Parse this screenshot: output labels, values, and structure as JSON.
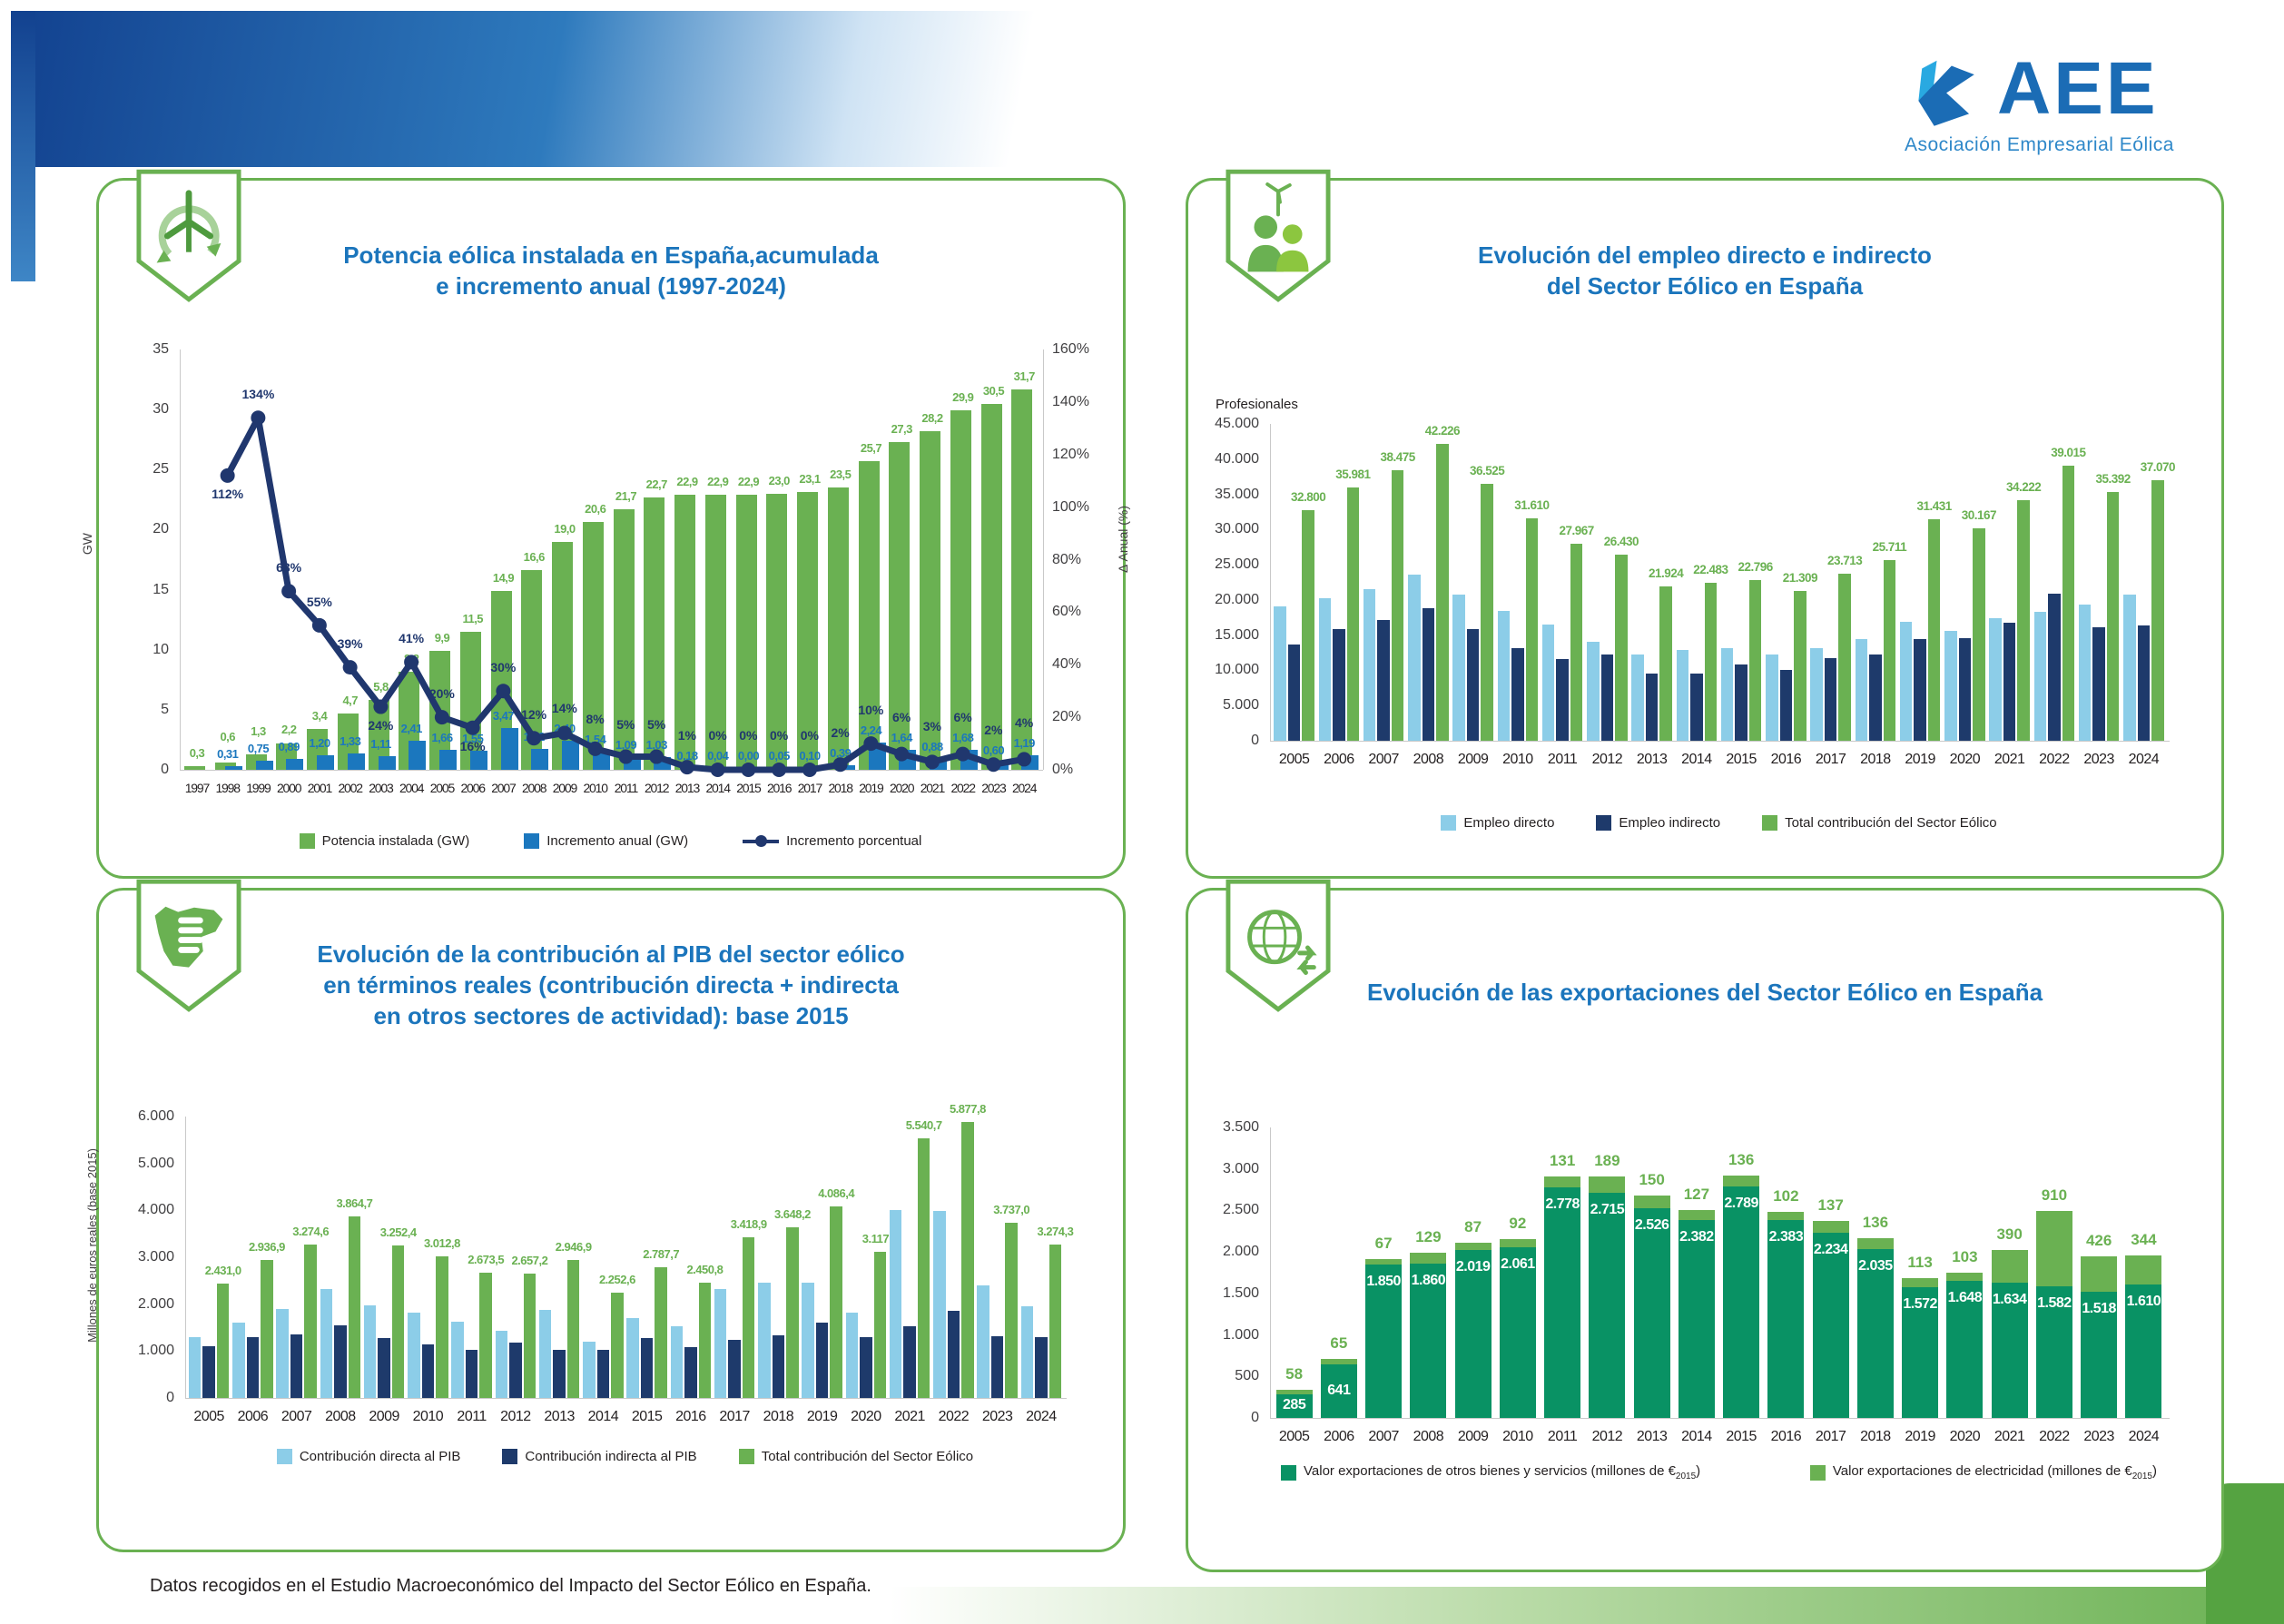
{
  "page": {
    "logo": {
      "name": "AEE",
      "subtitle": "Asociación Empresarial Eólica"
    },
    "footer": "Datos recogidos en el Estudio Macroeconómico del Impacto del Sector Eólico en España."
  },
  "colors": {
    "green": "#6AB152",
    "blue": "#1B77BE",
    "navy": "#20376E",
    "light_blue": "#8CCDE8",
    "dark_blue": "#1E3A6B",
    "teal_green": "#099264",
    "title_blue": "#1B75BC",
    "panel_border": "#6AB152"
  },
  "chart_data": [
    {
      "id": "capacity",
      "type": "bar+line",
      "title": "Potencia eólica instalada en España, acumulada e incremento anual (1997-2024)",
      "title_lines": [
        "Potencia eólica instalada en España,acumulada",
        "e incremento anual (1997-2024)"
      ],
      "categories": [
        "1997",
        "1998",
        "1999",
        "2000",
        "2001",
        "2002",
        "2003",
        "2004",
        "2005",
        "2006",
        "2007",
        "2008",
        "2009",
        "2010",
        "2011",
        "2012",
        "2013",
        "2014",
        "2015",
        "2016",
        "2017",
        "2018",
        "2019",
        "2020",
        "2021",
        "2022",
        "2023",
        "2024"
      ],
      "ylabel_left": "GW",
      "ylim_left": [
        0,
        35
      ],
      "yticks_left": [
        "0",
        "5",
        "10",
        "15",
        "20",
        "25",
        "30",
        "35"
      ],
      "ylabel_right": "Δ Anual (%)",
      "ylim_right": [
        0,
        160
      ],
      "yticks_right": [
        "0%",
        "20%",
        "40%",
        "60%",
        "80%",
        "100%",
        "120%",
        "140%",
        "160%"
      ],
      "series": [
        {
          "name": "Potencia instalada (GW)",
          "type": "bar",
          "values": [
            0.3,
            0.6,
            1.3,
            2.2,
            3.4,
            4.7,
            5.8,
            8.2,
            9.9,
            11.5,
            14.9,
            16.6,
            19.0,
            20.6,
            21.7,
            22.7,
            22.9,
            22.9,
            22.9,
            23.0,
            23.1,
            23.5,
            25.7,
            27.3,
            28.2,
            29.9,
            30.5,
            31.7
          ],
          "labels": [
            "0,3",
            "0,6",
            "1,3",
            "2,2",
            "3,4",
            "4,7",
            "5,8",
            "8,2",
            "9,9",
            "11,5",
            "14,9",
            "16,6",
            "19,0",
            "20,6",
            "21,7",
            "22,7",
            "22,9",
            "22,9",
            "22,9",
            "23,0",
            "23,1",
            "23,5",
            "25,7",
            "27,3",
            "28,2",
            "29,9",
            "30,5",
            "31,7"
          ]
        },
        {
          "name": "Incremento anual (GW)",
          "type": "bar",
          "values": [
            null,
            0.31,
            0.75,
            0.89,
            1.2,
            1.33,
            1.11,
            2.41,
            1.66,
            1.55,
            3.47,
            1.72,
            2.4,
            1.54,
            1.09,
            1.03,
            0.18,
            0.04,
            0.0,
            0.05,
            0.1,
            0.39,
            2.24,
            1.64,
            0.88,
            1.68,
            0.6,
            1.19
          ],
          "labels": [
            null,
            "0,31",
            "0,75",
            "0,89",
            "1,20",
            "1,33",
            "1,11",
            "2,41",
            "1,66",
            "1,55",
            "3,47",
            "1,72",
            "2,40",
            "1,54",
            "1,09",
            "1,03",
            "0,18",
            "0,04",
            "0,00",
            "0,05",
            "0,10",
            "0,39",
            "2,24",
            "1,64",
            "0,88",
            "1,68",
            "0,60",
            "1,19"
          ]
        },
        {
          "name": "Incremento porcentual",
          "type": "line",
          "values": [
            null,
            112,
            134,
            68,
            55,
            39,
            24,
            41,
            20,
            16,
            30,
            12,
            14,
            8,
            5,
            5,
            1,
            0,
            0,
            0,
            0,
            2,
            10,
            6,
            3,
            6,
            2,
            4
          ],
          "labels": [
            null,
            "112%",
            "134%",
            "68%",
            "55%",
            "39%",
            "24%",
            "41%",
            "20%",
            "16%",
            "30%",
            "12%",
            "14%",
            "8%",
            "5%",
            "5%",
            "1%",
            "0%",
            "0%",
            "0%",
            "0%",
            "2%",
            "10%",
            "6%",
            "3%",
            "6%",
            "2%",
            "4%"
          ]
        }
      ],
      "legend": [
        {
          "label": "Potencia instalada (GW)",
          "swatch": "green"
        },
        {
          "label": "Incremento anual (GW)",
          "swatch": "blue"
        },
        {
          "label": "Incremento porcentual",
          "swatch": "line"
        }
      ]
    },
    {
      "id": "employment",
      "type": "bar",
      "title": "Evolución del empleo directo e indirecto del Sector Eólico en España",
      "title_lines": [
        "Evolución del empleo directo e indirecto",
        "del Sector Eólico en España"
      ],
      "axis_title": "Profesionales",
      "categories": [
        "2005",
        "2006",
        "2007",
        "2008",
        "2009",
        "2010",
        "2011",
        "2012",
        "2013",
        "2014",
        "2015",
        "2016",
        "2017",
        "2018",
        "2019",
        "2020",
        "2021",
        "2022",
        "2023",
        "2024"
      ],
      "ylim": [
        0,
        45000
      ],
      "yticks": [
        "0",
        "5.000",
        "10.000",
        "15.000",
        "20.000",
        "25.000",
        "30.000",
        "35.000",
        "40.000",
        "45.000"
      ],
      "series": [
        {
          "name": "Empleo directo",
          "values": [
            19100,
            20200,
            21500,
            23600,
            20700,
            18400,
            16500,
            14100,
            12300,
            12900,
            13100,
            12300,
            13200,
            14500,
            16900,
            15600,
            17400,
            18300,
            19300,
            20700
          ]
        },
        {
          "name": "Empleo indirecto",
          "values": [
            13700,
            15800,
            17100,
            18800,
            15800,
            13100,
            11600,
            12300,
            9500,
            9500,
            10800,
            10100,
            11700,
            12300,
            14500,
            14600,
            16800,
            20900,
            16100,
            16400
          ]
        },
        {
          "name": "Total contribución del Sector Eólico",
          "values": [
            32800,
            35981,
            38475,
            42226,
            36525,
            31610,
            27967,
            26430,
            21924,
            22483,
            22796,
            21309,
            23713,
            25711,
            31431,
            30167,
            34222,
            39015,
            35392,
            37070
          ],
          "labels": [
            "32.800",
            "35.981",
            "38.475",
            "42.226",
            "36.525",
            "31.610",
            "27.967",
            "26.430",
            "21.924",
            "22.483",
            "22.796",
            "21.309",
            "23.713",
            "25.711",
            "31.431",
            "30.167",
            "34.222",
            "39.015",
            "35.392",
            "37.070"
          ]
        }
      ],
      "legend": [
        {
          "label": "Empleo directo",
          "swatch": "light_blue"
        },
        {
          "label": "Empleo indirecto",
          "swatch": "dark_blue"
        },
        {
          "label": "Total contribución del Sector Eólico",
          "swatch": "green"
        }
      ]
    },
    {
      "id": "gdp",
      "type": "bar",
      "title": "Evolución de la contribución al PIB del sector eólico en términos reales (contribución directa + indirecta en otros sectores de actividad): base 2015",
      "title_lines": [
        "Evolución de la contribución al PIB del sector eólico",
        "en términos reales (contribución directa + indirecta",
        "en otros sectores de actividad): base 2015"
      ],
      "ylabel": "Millones de euros reales (base 2015)",
      "categories": [
        "2005",
        "2006",
        "2007",
        "2008",
        "2009",
        "2010",
        "2011",
        "2012",
        "2013",
        "2014",
        "2015",
        "2016",
        "2017",
        "2018",
        "2019",
        "2020",
        "2021",
        "2022",
        "2023",
        "2024"
      ],
      "ylim": [
        0,
        6000
      ],
      "yticks": [
        "0",
        "1.000",
        "2.000",
        "3.000",
        "4.000",
        "5.000",
        "6.000"
      ],
      "series": [
        {
          "name": "Contribución directa al PIB",
          "values": [
            1290,
            1610,
            1890,
            2320,
            1970,
            1820,
            1620,
            1430,
            1880,
            1200,
            1710,
            1530,
            2330,
            2460,
            2450,
            1820,
            4000,
            3990,
            2400,
            1960
          ]
        },
        {
          "name": "Contribución indirecta al PIB",
          "values": [
            1100,
            1290,
            1350,
            1540,
            1270,
            1150,
            1020,
            1190,
            1020,
            1020,
            1270,
            1090,
            1240,
            1330,
            1610,
            1290,
            1530,
            1860,
            1310,
            1290
          ]
        },
        {
          "name": "Total contribución del Sector Eólico",
          "values": [
            2431.0,
            2936.9,
            3274.6,
            3864.7,
            3252.4,
            3012.8,
            2673.5,
            2657.2,
            2946.9,
            2252.6,
            2787.7,
            2450.8,
            3418.9,
            3648.2,
            4086.4,
            3117.0,
            5540.7,
            5877.8,
            3737.0,
            3274.3
          ],
          "labels": [
            "2.431,0",
            "2.936,9",
            "3.274,6",
            "3.864,7",
            "3.252,4",
            "3.012,8",
            "2.673,5",
            "2.657,2",
            "2.946,9",
            "2.252,6",
            "2.787,7",
            "2.450,8",
            "3.418,9",
            "3.648,2",
            "4.086,4",
            "3.117,0",
            "5.540,7",
            "5.877,8",
            "3.737,0",
            "3.274,3"
          ]
        }
      ],
      "legend": [
        {
          "label": "Contribución directa al PIB",
          "swatch": "light_blue"
        },
        {
          "label": "Contribución indirecta al PIB",
          "swatch": "dark_blue"
        },
        {
          "label": "Total contribución del Sector Eólico",
          "swatch": "green"
        }
      ]
    },
    {
      "id": "exports",
      "type": "stacked-bar",
      "title": "Evolución de las exportaciones del Sector Eólico en España",
      "title_lines": [
        "Evolución de las exportaciones del Sector Eólico en España"
      ],
      "categories": [
        "2005",
        "2006",
        "2007",
        "2008",
        "2009",
        "2010",
        "2011",
        "2012",
        "2013",
        "2014",
        "2015",
        "2016",
        "2017",
        "2018",
        "2019",
        "2020",
        "2021",
        "2022",
        "2023",
        "2024"
      ],
      "ylim": [
        0,
        3500
      ],
      "yticks": [
        "0",
        "500",
        "1.000",
        "1.500",
        "2.000",
        "2.500",
        "3.000",
        "3.500"
      ],
      "series": [
        {
          "name": "Valor exportaciones de otros bienes y servicios (millones de €2015)",
          "values": [
            285,
            641,
            1850,
            1860,
            2019,
            2061,
            2778,
            2715,
            2526,
            2382,
            2789,
            2383,
            2234,
            2035,
            1572,
            1648,
            1634,
            1582,
            1518,
            1610
          ],
          "labels": [
            "285",
            "641",
            "1.850",
            "1.860",
            "2.019",
            "2.061",
            "2.778",
            "2.715",
            "2.526",
            "2.382",
            "2.789",
            "2.383",
            "2.234",
            "2.035",
            "1.572",
            "1.648",
            "1.634",
            "1.582",
            "1.518",
            "1.610"
          ]
        },
        {
          "name": "Valor exportaciones de electricidad (millones de €2015)",
          "values": [
            58,
            65,
            67,
            129,
            87,
            92,
            131,
            189,
            150,
            127,
            136,
            102,
            137,
            136,
            113,
            103,
            390,
            910,
            426,
            344
          ],
          "labels": [
            "58",
            "65",
            "67",
            "129",
            "87",
            "92",
            "131",
            "189",
            "150",
            "127",
            "136",
            "102",
            "137",
            "136",
            "113",
            "103",
            "390",
            "910",
            "426",
            "344"
          ]
        }
      ],
      "legend": [
        {
          "label": "Valor exportaciones de otros bienes y servicios (millones de €",
          "sub": "2015",
          "post": ")",
          "swatch": "teal_green"
        },
        {
          "label": "Valor exportaciones de electricidad (millones de €",
          "sub": "2015",
          "post": ")",
          "swatch": "green"
        }
      ]
    }
  ]
}
